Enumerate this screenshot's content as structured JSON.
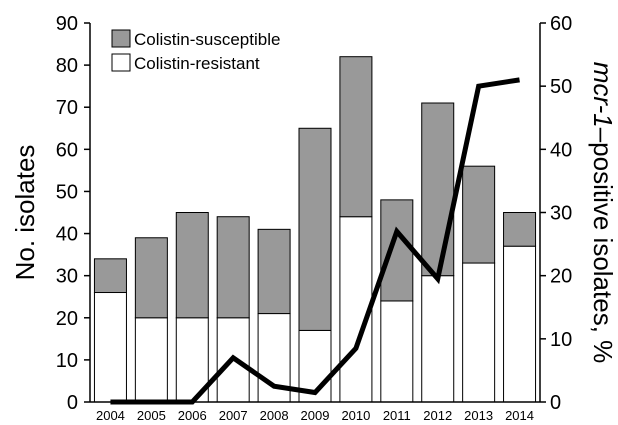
{
  "chart_data": {
    "type": "bar",
    "stacked": true,
    "categories": [
      "2004",
      "2005",
      "2006",
      "2007",
      "2008",
      "2009",
      "2010",
      "2011",
      "2012",
      "2013",
      "2014"
    ],
    "series": [
      {
        "name": "Colistin-resistant",
        "kind": "bar",
        "axis": "left",
        "color": "#ffffff",
        "values": [
          26,
          20,
          20,
          20,
          21,
          17,
          44,
          24,
          30,
          33,
          37
        ]
      },
      {
        "name": "Colistin-susceptible",
        "kind": "bar",
        "axis": "left",
        "color": "#999999",
        "values": [
          8,
          19,
          25,
          24,
          20,
          48,
          38,
          24,
          41,
          23,
          8
        ]
      },
      {
        "kind": "line",
        "axis": "right",
        "color": "#000000",
        "values": [
          0,
          0,
          0,
          7,
          2.5,
          1.5,
          8.5,
          27,
          19.5,
          50,
          51
        ]
      }
    ],
    "ylabel": "No. isolates",
    "ylabel_right": {
      "italic_part": "mcr-1",
      "rest": "–positive isolates, %"
    },
    "ylim": [
      0,
      90
    ],
    "yticks": [
      "0",
      "10",
      "20",
      "30",
      "40",
      "50",
      "60",
      "70",
      "80",
      "90"
    ],
    "ylim_right": [
      0,
      60
    ],
    "yticks_right": [
      "0",
      "10",
      "20",
      "30",
      "40",
      "50",
      "60"
    ],
    "legend": {
      "placement": "top-left",
      "entries": [
        {
          "label": "Colistin-susceptible",
          "color": "#999999"
        },
        {
          "label": "Colistin-resistant",
          "color": "#ffffff"
        }
      ]
    },
    "grid": false
  }
}
